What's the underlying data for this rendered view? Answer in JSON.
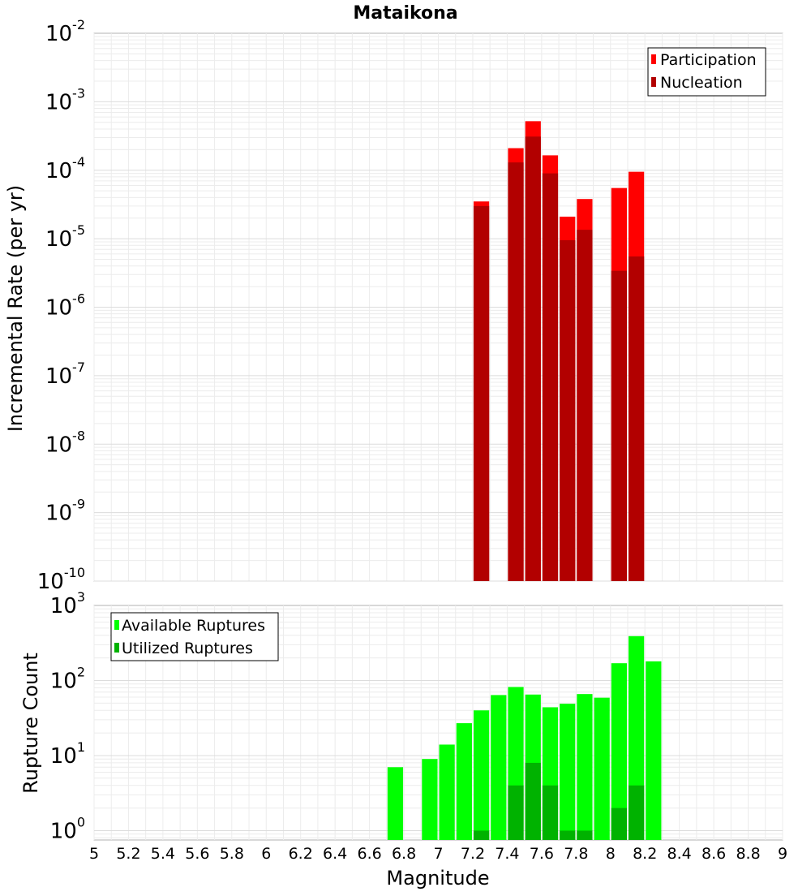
{
  "chart_data": [
    {
      "type": "bar",
      "title": "Mataikona",
      "ylabel": "Incremental Rate (per yr)",
      "xlabel": "",
      "xlim": [
        5,
        9
      ],
      "ylim": [
        1e-10,
        0.01
      ],
      "yscale": "log",
      "grid": true,
      "legend_position": "top-right",
      "ytick_labels": [
        {
          "base": "10",
          "exp": "-2"
        },
        {
          "base": "10",
          "exp": "-3"
        },
        {
          "base": "10",
          "exp": "-4"
        },
        {
          "base": "10",
          "exp": "-5"
        },
        {
          "base": "10",
          "exp": "-6"
        },
        {
          "base": "10",
          "exp": "-7"
        },
        {
          "base": "10",
          "exp": "-8"
        },
        {
          "base": "10",
          "exp": "-9"
        },
        {
          "base": "10",
          "exp": "-10"
        }
      ],
      "bar_width": 0.1,
      "series": [
        {
          "name": "Participation",
          "color": "#ff0000",
          "points": [
            {
              "x": 7.25,
              "y": 3.5e-05
            },
            {
              "x": 7.45,
              "y": 0.00021
            },
            {
              "x": 7.55,
              "y": 0.00052
            },
            {
              "x": 7.65,
              "y": 0.000165
            },
            {
              "x": 7.75,
              "y": 2.1e-05
            },
            {
              "x": 7.85,
              "y": 3.8e-05
            },
            {
              "x": 8.05,
              "y": 5.5e-05
            },
            {
              "x": 8.15,
              "y": 9.5e-05
            }
          ]
        },
        {
          "name": "Nucleation",
          "color": "#b20000",
          "points": [
            {
              "x": 7.25,
              "y": 3e-05
            },
            {
              "x": 7.45,
              "y": 0.00013
            },
            {
              "x": 7.55,
              "y": 0.00031
            },
            {
              "x": 7.65,
              "y": 9e-05
            },
            {
              "x": 7.75,
              "y": 9.5e-06
            },
            {
              "x": 7.85,
              "y": 1.35e-05
            },
            {
              "x": 8.05,
              "y": 3.4e-06
            },
            {
              "x": 8.15,
              "y": 5.5e-06
            }
          ]
        }
      ]
    },
    {
      "type": "bar",
      "title": "",
      "ylabel": "Rupture Count",
      "xlabel": "Magnitude",
      "xlim": [
        5,
        9
      ],
      "ylim": [
        0.75,
        1000
      ],
      "yscale": "log",
      "grid": true,
      "legend_position": "top-left",
      "xticks": [
        "5",
        "5.2",
        "5.4",
        "5.6",
        "5.8",
        "6",
        "6.2",
        "6.4",
        "6.6",
        "6.8",
        "7",
        "7.2",
        "7.4",
        "7.6",
        "7.8",
        "8",
        "8.2",
        "8.4",
        "8.6",
        "8.8",
        "9"
      ],
      "ytick_labels": [
        {
          "base": "10",
          "exp": "3"
        },
        {
          "base": "10",
          "exp": "2"
        },
        {
          "base": "10",
          "exp": "1"
        },
        {
          "base": "10",
          "exp": "0"
        }
      ],
      "bar_width": 0.1,
      "series": [
        {
          "name": "Available Ruptures",
          "color": "#00ff00",
          "points": [
            {
              "x": 6.75,
              "y": 7
            },
            {
              "x": 6.95,
              "y": 9
            },
            {
              "x": 7.05,
              "y": 14
            },
            {
              "x": 7.15,
              "y": 27
            },
            {
              "x": 7.25,
              "y": 40
            },
            {
              "x": 7.35,
              "y": 64
            },
            {
              "x": 7.45,
              "y": 82
            },
            {
              "x": 7.55,
              "y": 65
            },
            {
              "x": 7.65,
              "y": 44
            },
            {
              "x": 7.75,
              "y": 49
            },
            {
              "x": 7.85,
              "y": 66
            },
            {
              "x": 7.95,
              "y": 59
            },
            {
              "x": 8.05,
              "y": 170
            },
            {
              "x": 8.15,
              "y": 390
            },
            {
              "x": 8.25,
              "y": 180
            }
          ]
        },
        {
          "name": "Utilized Ruptures",
          "color": "#00b200",
          "points": [
            {
              "x": 7.25,
              "y": 1
            },
            {
              "x": 7.45,
              "y": 4
            },
            {
              "x": 7.55,
              "y": 8
            },
            {
              "x": 7.65,
              "y": 4
            },
            {
              "x": 7.75,
              "y": 1
            },
            {
              "x": 7.85,
              "y": 1
            },
            {
              "x": 8.05,
              "y": 2
            },
            {
              "x": 8.15,
              "y": 4
            }
          ]
        }
      ]
    }
  ]
}
